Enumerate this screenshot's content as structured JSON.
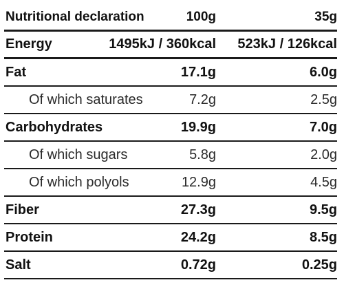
{
  "header": {
    "label": "Nutritional declaration",
    "col1": "100g",
    "col2": "35g"
  },
  "rows": [
    {
      "label": "Energy",
      "col1": "1495kJ / 360kcal",
      "col2": "523kJ / 126kcal",
      "bold": true
    },
    {
      "label": "Fat",
      "col1": "17.1g",
      "col2": "6.0g",
      "bold": true
    },
    {
      "label": "Of which saturates",
      "col1": "7.2g",
      "col2": "2.5g",
      "bold": false
    },
    {
      "label": "Carbohydrates",
      "col1": "19.9g",
      "col2": "7.0g",
      "bold": true
    },
    {
      "label": "Of which sugars",
      "col1": "5.8g",
      "col2": "2.0g",
      "bold": false
    },
    {
      "label": "Of which polyols",
      "col1": "12.9g",
      "col2": "4.5g",
      "bold": false
    },
    {
      "label": "Fiber",
      "col1": "27.3g",
      "col2": "9.5g",
      "bold": true
    },
    {
      "label": "Protein",
      "col1": "24.2g",
      "col2": "8.5g",
      "bold": true
    },
    {
      "label": "Salt",
      "col1": "0.72g",
      "col2": "0.25g",
      "bold": true
    }
  ]
}
